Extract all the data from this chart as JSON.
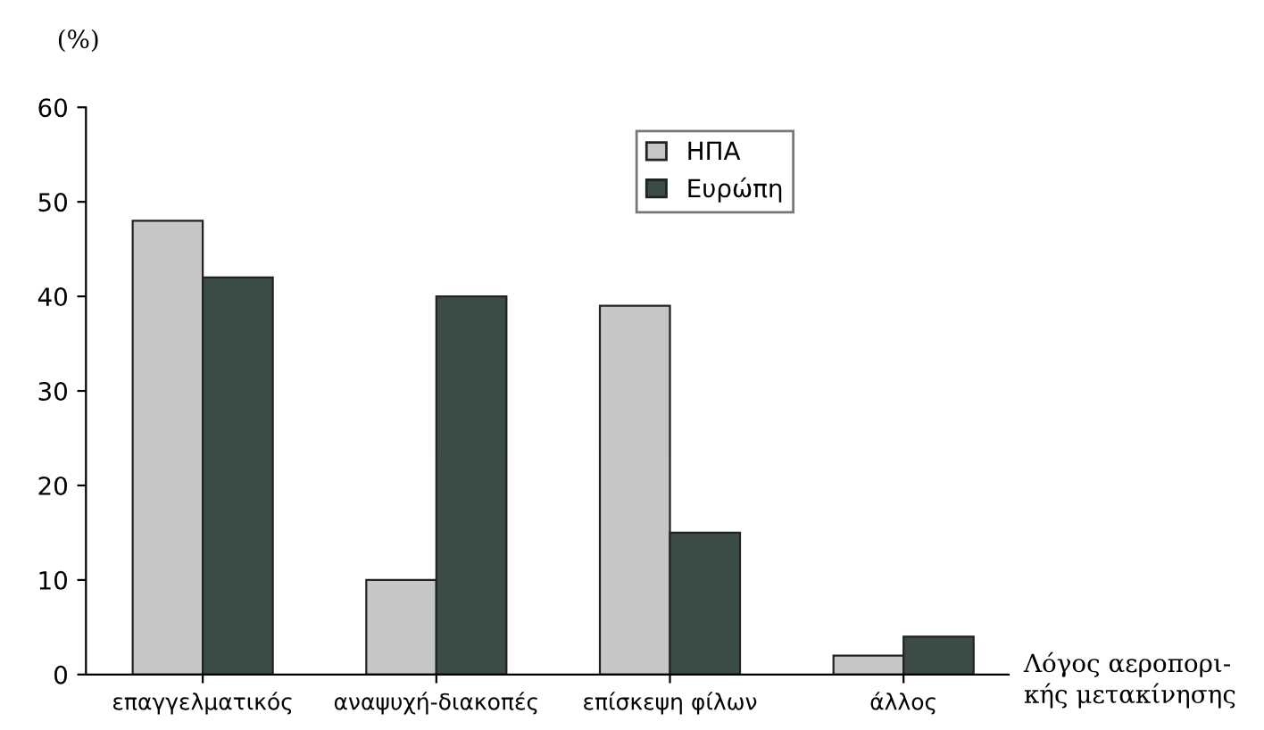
{
  "chart_data": {
    "type": "bar",
    "ylabel": "(%)",
    "xlabel": "Λόγος αεροπορι-\nκής μετακίνησης",
    "categories": [
      "επαγγελματικός",
      "αναψυχή-διακοπές",
      "επίσκεψη φίλων",
      "άλλος"
    ],
    "series": [
      {
        "name": "ΗΠΑ",
        "color": "#c4c7c6",
        "values": [
          48,
          10,
          39,
          2
        ]
      },
      {
        "name": "Ευρώπη",
        "color": "#3b4c46",
        "values": [
          42,
          40,
          15,
          4
        ]
      }
    ],
    "ylim": [
      0,
      60
    ],
    "yticks": [
      0,
      10,
      20,
      30,
      40,
      50,
      60
    ],
    "grid": false,
    "legend": "top right"
  }
}
